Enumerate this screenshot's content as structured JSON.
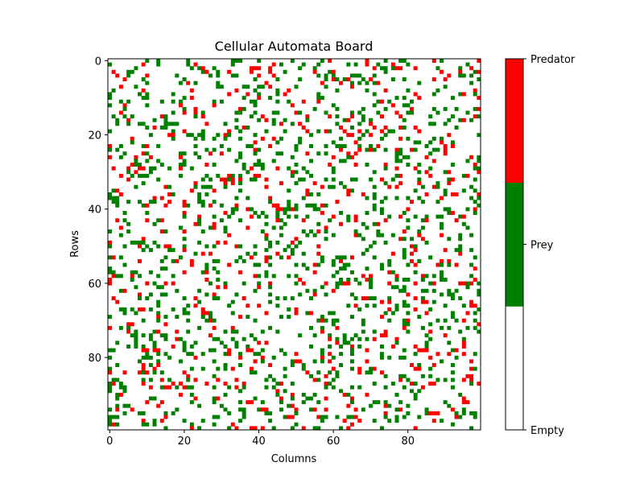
{
  "chart_data": {
    "type": "heatmap",
    "title": "Cellular Automata Board",
    "xlabel": "Columns",
    "ylabel": "Rows",
    "grid_size": [
      100,
      100
    ],
    "xlim": [
      -0.5,
      99.5
    ],
    "ylim": [
      99.5,
      -0.5
    ],
    "x_ticks": [
      0,
      20,
      40,
      60,
      80
    ],
    "y_ticks": [
      0,
      20,
      40,
      60,
      80
    ],
    "x_tick_labels": [
      "0",
      "20",
      "40",
      "60",
      "80"
    ],
    "y_tick_labels": [
      "0",
      "20",
      "40",
      "60",
      "80"
    ],
    "colormap": {
      "categories": [
        "Empty",
        "Prey",
        "Predator"
      ],
      "colors": [
        "#ffffff",
        "#008000",
        "#ff0000"
      ]
    },
    "colorbar": {
      "tick_labels": [
        "Empty",
        "Prey",
        "Predator"
      ]
    },
    "approx_fractions": {
      "Empty": 0.82,
      "Prey": 0.12,
      "Predator": 0.06
    }
  }
}
